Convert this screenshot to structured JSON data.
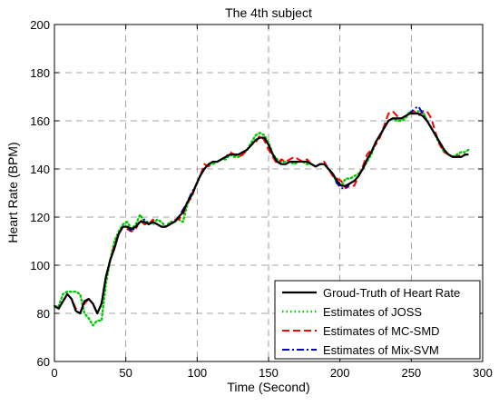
{
  "chart_data": {
    "type": "line",
    "title": "The 4th subject",
    "xlabel": "Time (Second)",
    "ylabel": "Heart Rate (BPM)",
    "xlim": [
      0,
      300
    ],
    "ylim": [
      60,
      200
    ],
    "xticks": [
      0,
      50,
      100,
      150,
      200,
      250,
      300
    ],
    "yticks": [
      60,
      80,
      100,
      120,
      140,
      160,
      180,
      200
    ],
    "grid": true,
    "legend_position": "bottom-right",
    "series": [
      {
        "name": "Groud-Truth of Heart Rate",
        "color": "#000000",
        "style": "solid",
        "x": [
          0,
          3,
          6,
          9,
          12,
          15,
          18,
          21,
          24,
          27,
          30,
          33,
          36,
          39,
          42,
          45,
          48,
          51,
          54,
          57,
          60,
          63,
          66,
          69,
          72,
          75,
          78,
          81,
          84,
          87,
          90,
          93,
          96,
          99,
          102,
          105,
          108,
          111,
          114,
          117,
          120,
          123,
          126,
          129,
          132,
          135,
          138,
          141,
          144,
          147,
          150,
          153,
          156,
          159,
          162,
          165,
          168,
          171,
          174,
          177,
          180,
          183,
          186,
          189,
          192,
          195,
          198,
          201,
          204,
          207,
          210,
          213,
          216,
          219,
          222,
          225,
          228,
          231,
          234,
          237,
          240,
          243,
          246,
          249,
          252,
          255,
          258,
          261,
          264,
          267,
          270,
          273,
          276,
          279,
          282,
          285,
          288,
          290
        ],
        "y": [
          83,
          82,
          85,
          88,
          86,
          81,
          80,
          85,
          86,
          84,
          80,
          84,
          95,
          102,
          107,
          113,
          116,
          116,
          115,
          116,
          118,
          118,
          117,
          118,
          117,
          116,
          116,
          117,
          118,
          120,
          122,
          126,
          129,
          133,
          137,
          140,
          142,
          143,
          143,
          144,
          145,
          146,
          146,
          146,
          147,
          148,
          150,
          152,
          153,
          153,
          150,
          146,
          143,
          142,
          142,
          143,
          143,
          143,
          143,
          143,
          142,
          141,
          142,
          142,
          140,
          138,
          135,
          133,
          133,
          134,
          135,
          137,
          140,
          144,
          147,
          151,
          154,
          157,
          160,
          161,
          161,
          161,
          162,
          163,
          163,
          163,
          162,
          160,
          157,
          154,
          151,
          148,
          146,
          145,
          145,
          145,
          146,
          146
        ]
      },
      {
        "name": "Estimates of JOSS",
        "color": "#00cc00",
        "style": "dotted",
        "x": [
          0,
          3,
          6,
          9,
          12,
          15,
          18,
          21,
          24,
          27,
          30,
          33,
          36,
          39,
          42,
          45,
          48,
          51,
          54,
          57,
          60,
          63,
          66,
          69,
          72,
          75,
          78,
          81,
          84,
          87,
          90,
          93,
          96,
          99,
          102,
          105,
          108,
          111,
          114,
          117,
          120,
          123,
          126,
          129,
          132,
          135,
          138,
          141,
          144,
          147,
          150,
          153,
          156,
          159,
          162,
          165,
          168,
          171,
          174,
          177,
          180,
          183,
          186,
          189,
          192,
          195,
          198,
          201,
          204,
          207,
          210,
          213,
          216,
          219,
          222,
          225,
          228,
          231,
          234,
          237,
          240,
          243,
          246,
          249,
          252,
          255,
          258,
          261,
          264,
          267,
          270,
          273,
          276,
          279,
          282,
          285,
          288,
          290
        ],
        "y": [
          83,
          83,
          88,
          89,
          89,
          89,
          88,
          80,
          78,
          75,
          77,
          77,
          92,
          102,
          110,
          114,
          117,
          118,
          115,
          117,
          121,
          118,
          118,
          117,
          119,
          118,
          116,
          118,
          118,
          119,
          118,
          125,
          129,
          133,
          137,
          140,
          142,
          142,
          143,
          144,
          144,
          146,
          145,
          145,
          146,
          148,
          151,
          154,
          155,
          154,
          151,
          146,
          144,
          143,
          143,
          143,
          142,
          143,
          143,
          142,
          142,
          141,
          142,
          142,
          140,
          138,
          134,
          133,
          136,
          136,
          137,
          138,
          140,
          143,
          146,
          151,
          154,
          157,
          160,
          161,
          160,
          160,
          161,
          164,
          163,
          164,
          164,
          160,
          157,
          154,
          150,
          147,
          146,
          145,
          146,
          147,
          147,
          148
        ]
      },
      {
        "name": "Estimates of MC-SMD",
        "color": "#ff0000",
        "style": "dashed",
        "x": [
          0,
          3,
          6,
          9,
          12,
          15,
          18,
          21,
          24,
          27,
          30,
          33,
          36,
          39,
          42,
          45,
          48,
          51,
          54,
          57,
          60,
          63,
          66,
          69,
          72,
          75,
          78,
          81,
          84,
          87,
          90,
          93,
          96,
          99,
          102,
          105,
          108,
          111,
          114,
          117,
          120,
          123,
          126,
          129,
          132,
          135,
          138,
          141,
          144,
          147,
          150,
          153,
          156,
          159,
          162,
          165,
          168,
          171,
          174,
          177,
          180,
          183,
          186,
          189,
          192,
          195,
          198,
          201,
          204,
          207,
          210,
          213,
          216,
          219,
          222,
          225,
          228,
          231,
          234,
          237,
          240,
          243,
          246,
          249,
          252,
          255,
          258,
          261,
          264,
          267,
          270,
          273,
          276,
          279,
          282,
          285,
          288,
          290
        ],
        "y": [
          83,
          82,
          85,
          88,
          86,
          82,
          80,
          84,
          86,
          84,
          80,
          84,
          95,
          102,
          108,
          113,
          116,
          115,
          114,
          115,
          119,
          117,
          117,
          119,
          117,
          116,
          116,
          117,
          119,
          119,
          121,
          126,
          128,
          133,
          137,
          142,
          141,
          143,
          143,
          144,
          145,
          147,
          146,
          145,
          146,
          148,
          150,
          151,
          154,
          152,
          148,
          145,
          142,
          144,
          143,
          144,
          145,
          144,
          143,
          144,
          142,
          141,
          142,
          143,
          140,
          137,
          136,
          135,
          132,
          133,
          133,
          137,
          141,
          146,
          148,
          150,
          153,
          158,
          163,
          164,
          162,
          161,
          162,
          163,
          164,
          162,
          164,
          164,
          161,
          155,
          150,
          147,
          146,
          145,
          145,
          146,
          146,
          146
        ]
      },
      {
        "name": "Estimates of Mix-SVM",
        "color": "#0000cc",
        "style": "dashdot",
        "x": [
          0,
          3,
          6,
          9,
          12,
          15,
          18,
          21,
          24,
          27,
          30,
          33,
          36,
          39,
          42,
          45,
          48,
          51,
          54,
          57,
          60,
          63,
          66,
          69,
          72,
          75,
          78,
          81,
          84,
          87,
          90,
          93,
          96,
          99,
          102,
          105,
          108,
          111,
          114,
          117,
          120,
          123,
          126,
          129,
          132,
          135,
          138,
          141,
          144,
          147,
          150,
          153,
          156,
          159,
          162,
          165,
          168,
          171,
          174,
          177,
          180,
          183,
          186,
          189,
          192,
          195,
          198,
          201,
          204,
          207,
          210,
          213,
          216,
          219,
          222,
          225,
          228,
          231,
          234,
          237,
          240,
          243,
          246,
          249,
          252,
          255,
          258,
          261,
          264,
          267,
          270,
          273,
          276,
          279,
          282,
          285,
          288,
          290
        ],
        "y": [
          83,
          82,
          85,
          88,
          86,
          81,
          80,
          85,
          86,
          84,
          80,
          84,
          95,
          102,
          107,
          113,
          116,
          116,
          114,
          116,
          118,
          119,
          117,
          118,
          117,
          116,
          116,
          117,
          118,
          120,
          123,
          126,
          130,
          133,
          137,
          140,
          142,
          143,
          143,
          144,
          145,
          146,
          146,
          146,
          147,
          148,
          150,
          152,
          153,
          153,
          150,
          146,
          143,
          142,
          142,
          143,
          143,
          143,
          143,
          143,
          142,
          141,
          142,
          142,
          140,
          138,
          134,
          132,
          132,
          134,
          135,
          137,
          140,
          144,
          147,
          151,
          154,
          157,
          160,
          161,
          161,
          161,
          162,
          163,
          165,
          166,
          163,
          160,
          157,
          154,
          151,
          148,
          146,
          145,
          145,
          145,
          146,
          146
        ]
      }
    ]
  }
}
